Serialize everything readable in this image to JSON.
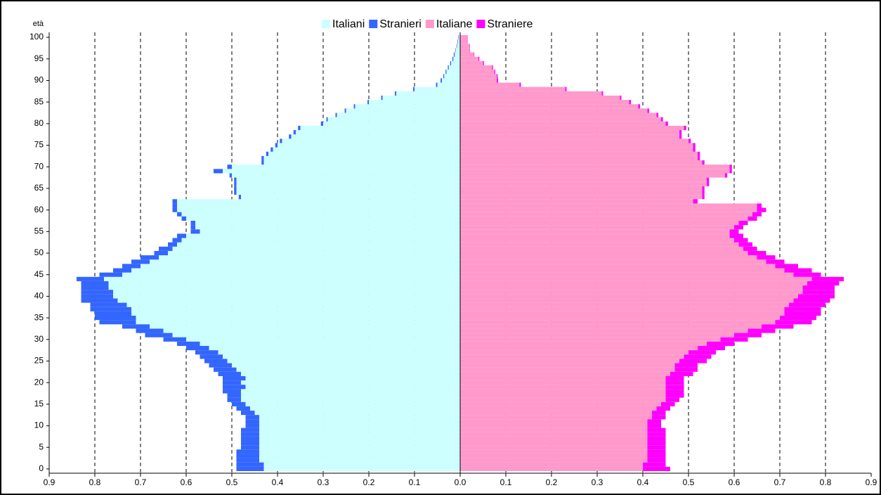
{
  "chart_data": {
    "type": "pyramid",
    "y_label": "età",
    "categories": [
      0,
      1,
      2,
      3,
      4,
      5,
      6,
      7,
      8,
      9,
      10,
      11,
      12,
      13,
      14,
      15,
      16,
      17,
      18,
      19,
      20,
      21,
      22,
      23,
      24,
      25,
      26,
      27,
      28,
      29,
      30,
      31,
      32,
      33,
      34,
      35,
      36,
      37,
      38,
      39,
      40,
      41,
      42,
      43,
      44,
      45,
      46,
      47,
      48,
      49,
      50,
      51,
      52,
      53,
      54,
      55,
      56,
      57,
      58,
      59,
      60,
      61,
      62,
      63,
      64,
      65,
      66,
      67,
      68,
      69,
      70,
      71,
      72,
      73,
      74,
      75,
      76,
      77,
      78,
      79,
      80,
      81,
      82,
      83,
      84,
      85,
      86,
      87,
      88,
      89,
      90,
      91,
      92,
      93,
      94,
      95,
      96,
      97,
      98,
      99,
      100
    ],
    "series": [
      {
        "name": "Italiani",
        "color": "#ccffff",
        "side": "left",
        "values": [
          0.43,
          0.43,
          0.44,
          0.44,
          0.44,
          0.44,
          0.44,
          0.44,
          0.44,
          0.44,
          0.44,
          0.44,
          0.44,
          0.45,
          0.46,
          0.47,
          0.48,
          0.48,
          0.48,
          0.47,
          0.48,
          0.47,
          0.48,
          0.49,
          0.5,
          0.51,
          0.52,
          0.53,
          0.55,
          0.57,
          0.6,
          0.63,
          0.65,
          0.68,
          0.71,
          0.71,
          0.72,
          0.72,
          0.73,
          0.75,
          0.76,
          0.76,
          0.77,
          0.77,
          0.78,
          0.74,
          0.72,
          0.7,
          0.68,
          0.66,
          0.64,
          0.63,
          0.62,
          0.61,
          0.6,
          0.57,
          0.58,
          0.58,
          0.6,
          0.61,
          0.62,
          0.62,
          0.62,
          0.48,
          0.49,
          0.49,
          0.49,
          0.49,
          0.5,
          0.52,
          0.5,
          0.43,
          0.43,
          0.42,
          0.41,
          0.4,
          0.39,
          0.37,
          0.36,
          0.35,
          0.3,
          0.29,
          0.27,
          0.25,
          0.23,
          0.2,
          0.17,
          0.14,
          0.1,
          0.05,
          0.04,
          0.035,
          0.03,
          0.025,
          0.02,
          0.015,
          0.012,
          0.01,
          0.007,
          0.005,
          0.003
        ]
      },
      {
        "name": "Stranieri",
        "color": "#3366ff",
        "side": "left",
        "values": [
          0.06,
          0.06,
          0.05,
          0.05,
          0.05,
          0.04,
          0.04,
          0.04,
          0.04,
          0.04,
          0.03,
          0.03,
          0.03,
          0.03,
          0.03,
          0.03,
          0.03,
          0.03,
          0.04,
          0.05,
          0.04,
          0.05,
          0.05,
          0.05,
          0.05,
          0.05,
          0.05,
          0.05,
          0.05,
          0.05,
          0.05,
          0.06,
          0.06,
          0.06,
          0.08,
          0.09,
          0.08,
          0.09,
          0.08,
          0.08,
          0.07,
          0.07,
          0.06,
          0.06,
          0.06,
          0.05,
          0.04,
          0.04,
          0.04,
          0.04,
          0.03,
          0.03,
          0.02,
          0.02,
          0.02,
          0.02,
          0.01,
          0.01,
          0.01,
          0.01,
          0.01,
          0.01,
          0.01,
          0.005,
          0.005,
          0.005,
          0.005,
          0.005,
          0.005,
          0.02,
          0.01,
          0.005,
          0.005,
          0.005,
          0.005,
          0.005,
          0.005,
          0.005,
          0.005,
          0.005,
          0.005,
          0.003,
          0.003,
          0.003,
          0.003,
          0.003,
          0.003,
          0.003,
          0.003,
          0.003,
          0.003,
          0.002,
          0.002,
          0.002,
          0.002,
          0.002,
          0.002,
          0.001,
          0.001,
          0.001,
          0.001
        ]
      },
      {
        "name": "Italiane",
        "color": "#ff99cc",
        "side": "right",
        "values": [
          0.4,
          0.4,
          0.41,
          0.41,
          0.41,
          0.41,
          0.41,
          0.41,
          0.41,
          0.41,
          0.41,
          0.41,
          0.42,
          0.42,
          0.43,
          0.44,
          0.45,
          0.45,
          0.45,
          0.45,
          0.45,
          0.45,
          0.46,
          0.47,
          0.47,
          0.48,
          0.49,
          0.5,
          0.52,
          0.54,
          0.57,
          0.6,
          0.63,
          0.66,
          0.69,
          0.7,
          0.71,
          0.71,
          0.72,
          0.73,
          0.74,
          0.75,
          0.75,
          0.76,
          0.77,
          0.73,
          0.71,
          0.69,
          0.67,
          0.65,
          0.63,
          0.62,
          0.61,
          0.6,
          0.59,
          0.59,
          0.6,
          0.61,
          0.63,
          0.64,
          0.65,
          0.65,
          0.51,
          0.53,
          0.53,
          0.53,
          0.54,
          0.54,
          0.58,
          0.59,
          0.59,
          0.53,
          0.52,
          0.52,
          0.51,
          0.51,
          0.5,
          0.48,
          0.48,
          0.49,
          0.45,
          0.44,
          0.43,
          0.41,
          0.39,
          0.37,
          0.35,
          0.31,
          0.23,
          0.13,
          0.08,
          0.08,
          0.075,
          0.07,
          0.05,
          0.04,
          0.03,
          0.02,
          0.02,
          0.015,
          0.015
        ]
      },
      {
        "name": "Straniere",
        "color": "#ff00ff",
        "side": "right",
        "values": [
          0.06,
          0.05,
          0.04,
          0.04,
          0.04,
          0.04,
          0.04,
          0.04,
          0.04,
          0.04,
          0.03,
          0.03,
          0.03,
          0.03,
          0.03,
          0.03,
          0.03,
          0.04,
          0.04,
          0.04,
          0.04,
          0.04,
          0.05,
          0.05,
          0.05,
          0.06,
          0.06,
          0.06,
          0.06,
          0.06,
          0.06,
          0.06,
          0.06,
          0.07,
          0.08,
          0.08,
          0.08,
          0.08,
          0.08,
          0.08,
          0.08,
          0.07,
          0.07,
          0.07,
          0.07,
          0.06,
          0.06,
          0.05,
          0.04,
          0.04,
          0.04,
          0.03,
          0.03,
          0.03,
          0.03,
          0.02,
          0.02,
          0.02,
          0.02,
          0.02,
          0.02,
          0.01,
          0.01,
          0.005,
          0.005,
          0.005,
          0.005,
          0.005,
          0.005,
          0.005,
          0.005,
          0.005,
          0.005,
          0.005,
          0.005,
          0.005,
          0.005,
          0.005,
          0.005,
          0.005,
          0.005,
          0.004,
          0.004,
          0.004,
          0.004,
          0.004,
          0.003,
          0.003,
          0.003,
          0.003,
          0.003,
          0.002,
          0.002,
          0.002,
          0.002,
          0.002,
          0.001,
          0.001,
          0.001,
          0.001,
          0.001
        ]
      }
    ],
    "xlim": [
      -0.9,
      0.9
    ],
    "xticks": [
      {
        "value": -0.9,
        "label": "0.9"
      },
      {
        "value": -0.8,
        "label": "0.8"
      },
      {
        "value": -0.7,
        "label": "0.7"
      },
      {
        "value": -0.6,
        "label": "0.6"
      },
      {
        "value": -0.5,
        "label": "0.5"
      },
      {
        "value": -0.4,
        "label": "0.4"
      },
      {
        "value": -0.3,
        "label": "0.3"
      },
      {
        "value": -0.2,
        "label": "0.2"
      },
      {
        "value": -0.1,
        "label": "0.1"
      },
      {
        "value": 0,
        "label": "0.0"
      },
      0.1,
      0.2,
      0.3,
      0.4,
      0.5,
      0.6,
      0.7,
      0.8,
      0.9
    ],
    "ylim": [
      -0.5,
      100.5
    ],
    "yticks": [
      0,
      5,
      10,
      15,
      20,
      25,
      30,
      35,
      40,
      45,
      50,
      55,
      60,
      65,
      70,
      75,
      80,
      85,
      90,
      95,
      100
    ],
    "grid": true
  }
}
